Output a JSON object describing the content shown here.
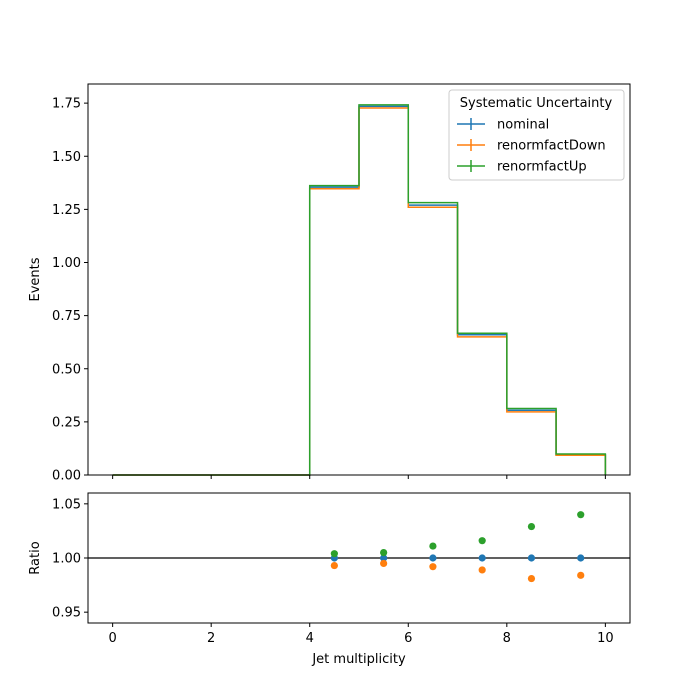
{
  "chart_data": [
    {
      "type": "line",
      "step": true,
      "bin_edges": [
        0,
        1,
        2,
        3,
        4,
        5,
        6,
        7,
        8,
        9,
        10
      ],
      "xlim": [
        -0.5,
        10.5
      ],
      "ylim": [
        0,
        1.84
      ],
      "ylabel": "Events",
      "yticks": [
        0.0,
        0.25,
        0.5,
        0.75,
        1.0,
        1.25,
        1.5,
        1.75
      ],
      "ytick_labels": [
        "0.00",
        "0.25",
        "0.50",
        "0.75",
        "1.00",
        "1.25",
        "1.50",
        "1.75"
      ],
      "xticks": [
        0,
        2,
        4,
        6,
        8,
        10
      ],
      "legend": {
        "title": "Systematic Uncertainty",
        "placement": "top-right"
      },
      "series": [
        {
          "name": "nominal",
          "color": "#1f77b4",
          "values": [
            0,
            0,
            0,
            0,
            1.355,
            1.735,
            1.27,
            0.66,
            0.305,
            0.095
          ]
        },
        {
          "name": "renormfactDown",
          "color": "#ff7f0e",
          "values": [
            0,
            0,
            0,
            0,
            1.347,
            1.727,
            1.26,
            0.65,
            0.297,
            0.093
          ]
        },
        {
          "name": "renormfactUp",
          "color": "#2ca02c",
          "values": [
            0,
            0,
            0,
            0,
            1.362,
            1.742,
            1.282,
            0.667,
            0.313,
            0.099
          ]
        }
      ]
    },
    {
      "type": "scatter",
      "x": [
        4.5,
        5.5,
        6.5,
        7.5,
        8.5,
        9.5
      ],
      "xlim": [
        -0.5,
        10.5
      ],
      "ylim": [
        0.94,
        1.06
      ],
      "xlabel": "Jet multiplicity",
      "ylabel": "Ratio",
      "reference_line": 1.0,
      "xticks": [
        0,
        2,
        4,
        6,
        8,
        10
      ],
      "xtick_labels": [
        "0",
        "2",
        "4",
        "6",
        "8",
        "10"
      ],
      "yticks": [
        0.95,
        1.0,
        1.05
      ],
      "ytick_labels": [
        "0.95",
        "1.00",
        "1.05"
      ],
      "series": [
        {
          "name": "nominal",
          "color": "#1f77b4",
          "values": [
            1.0,
            1.0,
            1.0,
            1.0,
            1.0,
            1.0
          ]
        },
        {
          "name": "renormfactDown",
          "color": "#ff7f0e",
          "values": [
            0.993,
            0.995,
            0.992,
            0.989,
            0.981,
            0.984
          ]
        },
        {
          "name": "renormfactUp",
          "color": "#2ca02c",
          "values": [
            1.004,
            1.005,
            1.011,
            1.016,
            1.029,
            1.04
          ]
        }
      ]
    }
  ]
}
